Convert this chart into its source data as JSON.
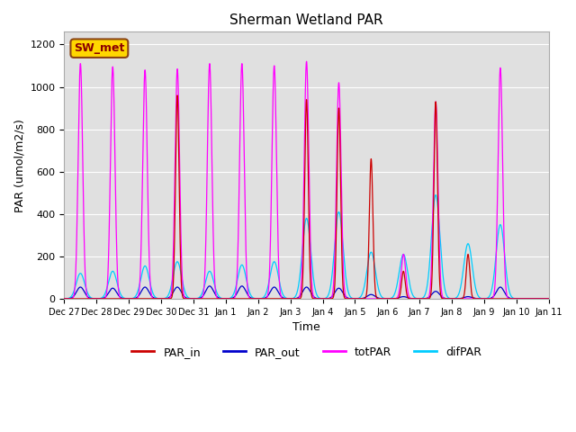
{
  "title": "Sherman Wetland PAR",
  "ylabel": "PAR (umol/m2/s)",
  "xlabel": "Time",
  "station_label": "SW_met",
  "ylim": [
    0,
    1260
  ],
  "yticks": [
    0,
    200,
    400,
    600,
    800,
    1000,
    1200
  ],
  "tick_labels": [
    "Dec 27",
    "Dec 28",
    "Dec 29",
    "Dec 30",
    "Dec 31",
    "Jan 1",
    "Jan 2",
    "Jan 3",
    "Jan 4",
    "Jan 5",
    "Jan 6",
    "Jan 7",
    "Jan 8",
    "Jan 9",
    "Jan 10",
    "Jan 11"
  ],
  "colors": {
    "PAR_in": "#cc0000",
    "PAR_out": "#0000cc",
    "totPAR": "#ff00ff",
    "difPAR": "#00ccff"
  },
  "bg_color": "#e0e0e0",
  "legend_items": [
    "PAR_in",
    "PAR_out",
    "totPAR",
    "difPAR"
  ],
  "daily_peaks": {
    "totPAR": [
      1110,
      1095,
      1080,
      1085,
      1110,
      1110,
      1100,
      1120,
      1020,
      0,
      210,
      930,
      0,
      1090
    ],
    "PAR_out": [
      55,
      50,
      55,
      55,
      60,
      60,
      55,
      55,
      50,
      20,
      10,
      35,
      10,
      55
    ],
    "PAR_in": [
      0,
      0,
      0,
      960,
      0,
      0,
      0,
      940,
      900,
      660,
      130,
      930,
      210,
      0
    ],
    "difPAR": [
      120,
      130,
      155,
      175,
      130,
      160,
      175,
      380,
      410,
      220,
      210,
      490,
      260,
      350
    ]
  },
  "widths": {
    "totPAR": 0.07,
    "PAR_out": 0.12,
    "PAR_in": 0.055,
    "difPAR": 0.13
  }
}
